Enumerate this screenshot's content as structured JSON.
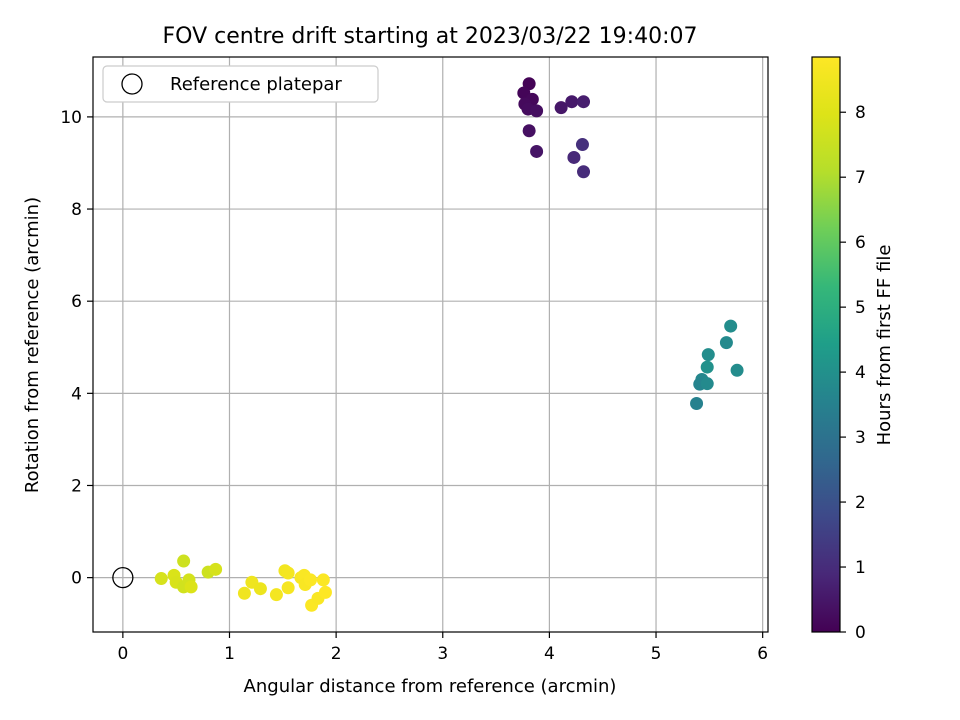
{
  "chart_data": {
    "type": "scatter",
    "title": "FOV centre drift starting at 2023/03/22 19:40:07",
    "xlabel": "Angular distance from reference (arcmin)",
    "ylabel": "Rotation from reference (arcmin)",
    "xlim": [
      -0.28,
      6.05
    ],
    "ylim": [
      -1.18,
      11.3
    ],
    "xticks": [
      0,
      1,
      2,
      3,
      4,
      5,
      6
    ],
    "yticks": [
      0,
      2,
      4,
      6,
      8,
      10
    ],
    "grid": true,
    "legend": {
      "placement": "upper-left",
      "entries": [
        "Reference platepar"
      ]
    },
    "reference_point": {
      "x": 0,
      "y": 0,
      "label": "Reference platepar"
    },
    "colorbar": {
      "label": "Hours from first FF file",
      "colormap": "viridis",
      "range": [
        0,
        8.85
      ],
      "ticks": [
        0,
        1,
        2,
        3,
        4,
        5,
        6,
        7,
        8
      ]
    },
    "points": [
      {
        "x": 3.81,
        "y": 10.72,
        "c": 0.05
      },
      {
        "x": 3.76,
        "y": 10.52,
        "c": 0.1
      },
      {
        "x": 3.84,
        "y": 10.38,
        "c": 0.15
      },
      {
        "x": 3.77,
        "y": 10.28,
        "c": 0.2
      },
      {
        "x": 3.8,
        "y": 10.17,
        "c": 0.25
      },
      {
        "x": 3.88,
        "y": 10.13,
        "c": 0.3
      },
      {
        "x": 3.81,
        "y": 9.7,
        "c": 0.35
      },
      {
        "x": 3.88,
        "y": 9.25,
        "c": 0.45
      },
      {
        "x": 4.11,
        "y": 10.2,
        "c": 0.5
      },
      {
        "x": 4.21,
        "y": 10.33,
        "c": 0.55
      },
      {
        "x": 4.32,
        "y": 10.33,
        "c": 0.65
      },
      {
        "x": 4.31,
        "y": 9.4,
        "c": 1.1
      },
      {
        "x": 4.23,
        "y": 9.12,
        "c": 0.9
      },
      {
        "x": 4.32,
        "y": 8.81,
        "c": 1.0
      },
      {
        "x": 5.7,
        "y": 5.46,
        "c": 3.9
      },
      {
        "x": 5.66,
        "y": 5.1,
        "c": 3.8
      },
      {
        "x": 5.49,
        "y": 4.84,
        "c": 3.9
      },
      {
        "x": 5.48,
        "y": 4.57,
        "c": 4.0
      },
      {
        "x": 5.76,
        "y": 4.5,
        "c": 3.85
      },
      {
        "x": 5.43,
        "y": 4.3,
        "c": 3.7
      },
      {
        "x": 5.41,
        "y": 4.2,
        "c": 3.6
      },
      {
        "x": 5.48,
        "y": 4.21,
        "c": 3.8
      },
      {
        "x": 5.38,
        "y": 3.78,
        "c": 3.5
      },
      {
        "x": 0.36,
        "y": -0.02,
        "c": 7.8
      },
      {
        "x": 0.48,
        "y": 0.05,
        "c": 7.9
      },
      {
        "x": 0.5,
        "y": -0.1,
        "c": 7.85
      },
      {
        "x": 0.57,
        "y": 0.36,
        "c": 7.6
      },
      {
        "x": 0.57,
        "y": -0.2,
        "c": 7.7
      },
      {
        "x": 0.62,
        "y": -0.05,
        "c": 7.75
      },
      {
        "x": 0.64,
        "y": -0.2,
        "c": 7.95
      },
      {
        "x": 0.8,
        "y": 0.12,
        "c": 7.6
      },
      {
        "x": 0.87,
        "y": 0.18,
        "c": 7.8
      },
      {
        "x": 1.14,
        "y": -0.34,
        "c": 8.5
      },
      {
        "x": 1.21,
        "y": -0.1,
        "c": 8.45
      },
      {
        "x": 1.29,
        "y": -0.24,
        "c": 8.4
      },
      {
        "x": 1.44,
        "y": -0.37,
        "c": 8.6
      },
      {
        "x": 1.52,
        "y": 0.15,
        "c": 8.55
      },
      {
        "x": 1.55,
        "y": 0.1,
        "c": 8.6
      },
      {
        "x": 1.55,
        "y": -0.22,
        "c": 8.65
      },
      {
        "x": 1.67,
        "y": 0.0,
        "c": 8.7
      },
      {
        "x": 1.7,
        "y": 0.05,
        "c": 8.75
      },
      {
        "x": 1.71,
        "y": -0.15,
        "c": 8.7
      },
      {
        "x": 1.76,
        "y": -0.05,
        "c": 8.8
      },
      {
        "x": 1.77,
        "y": -0.6,
        "c": 8.8
      },
      {
        "x": 1.83,
        "y": -0.45,
        "c": 8.75
      },
      {
        "x": 1.88,
        "y": -0.05,
        "c": 8.8
      },
      {
        "x": 1.9,
        "y": -0.32,
        "c": 8.85
      }
    ]
  }
}
